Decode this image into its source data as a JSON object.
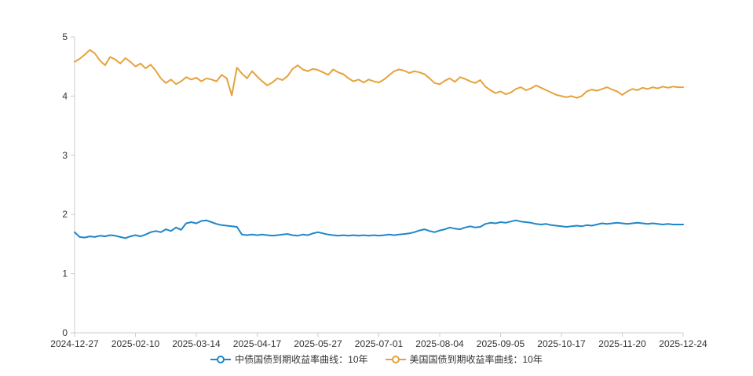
{
  "page": {
    "background": "#ffffff"
  },
  "chart_data": {
    "type": "line",
    "title": "",
    "xlabel": "",
    "ylabel": "",
    "ylim": [
      0,
      5
    ],
    "y_ticks": [
      0,
      1,
      2,
      3,
      4,
      5
    ],
    "grid": false,
    "legend_position": "bottom",
    "axis_color": "#cccccc",
    "label_color": "#333333",
    "x_tick_labels": [
      "2024-12-27",
      "2025-02-10",
      "2025-03-14",
      "2025-04-17",
      "2025-05-27",
      "2025-07-01",
      "2025-08-04",
      "2025-09-05",
      "2025-10-17",
      "2025-11-20",
      "2025-12-24"
    ],
    "series": [
      {
        "name": "中债国债到期收益率曲线：10年",
        "color": "#1e87c9",
        "values": [
          1.7,
          1.62,
          1.61,
          1.63,
          1.62,
          1.64,
          1.63,
          1.65,
          1.64,
          1.62,
          1.6,
          1.63,
          1.65,
          1.63,
          1.66,
          1.7,
          1.72,
          1.7,
          1.75,
          1.72,
          1.78,
          1.74,
          1.85,
          1.87,
          1.85,
          1.89,
          1.9,
          1.87,
          1.84,
          1.82,
          1.81,
          1.8,
          1.79,
          1.66,
          1.65,
          1.66,
          1.65,
          1.66,
          1.65,
          1.64,
          1.65,
          1.66,
          1.67,
          1.65,
          1.64,
          1.66,
          1.65,
          1.68,
          1.7,
          1.68,
          1.66,
          1.65,
          1.64,
          1.65,
          1.64,
          1.65,
          1.64,
          1.65,
          1.64,
          1.65,
          1.64,
          1.65,
          1.66,
          1.65,
          1.66,
          1.67,
          1.68,
          1.7,
          1.73,
          1.75,
          1.72,
          1.7,
          1.73,
          1.75,
          1.78,
          1.76,
          1.75,
          1.78,
          1.8,
          1.78,
          1.79,
          1.84,
          1.86,
          1.85,
          1.87,
          1.86,
          1.88,
          1.9,
          1.88,
          1.87,
          1.86,
          1.84,
          1.83,
          1.84,
          1.82,
          1.81,
          1.8,
          1.79,
          1.8,
          1.81,
          1.8,
          1.82,
          1.81,
          1.83,
          1.85,
          1.84,
          1.85,
          1.86,
          1.85,
          1.84,
          1.85,
          1.86,
          1.85,
          1.84,
          1.85,
          1.84,
          1.83,
          1.84,
          1.83,
          1.83,
          1.83
        ]
      },
      {
        "name": "美国国债到期收益率曲线：10年",
        "color": "#e6a23c",
        "values": [
          4.58,
          4.63,
          4.7,
          4.78,
          4.72,
          4.6,
          4.52,
          4.66,
          4.62,
          4.55,
          4.64,
          4.58,
          4.5,
          4.55,
          4.47,
          4.53,
          4.43,
          4.3,
          4.22,
          4.28,
          4.2,
          4.25,
          4.32,
          4.28,
          4.31,
          4.25,
          4.3,
          4.28,
          4.25,
          4.36,
          4.3,
          4.01,
          4.48,
          4.38,
          4.3,
          4.42,
          4.33,
          4.25,
          4.18,
          4.23,
          4.3,
          4.27,
          4.34,
          4.46,
          4.52,
          4.45,
          4.42,
          4.46,
          4.44,
          4.4,
          4.36,
          4.45,
          4.4,
          4.37,
          4.3,
          4.25,
          4.28,
          4.23,
          4.28,
          4.25,
          4.23,
          4.28,
          4.35,
          4.42,
          4.45,
          4.43,
          4.39,
          4.42,
          4.4,
          4.37,
          4.3,
          4.22,
          4.2,
          4.26,
          4.3,
          4.24,
          4.32,
          4.29,
          4.25,
          4.22,
          4.27,
          4.16,
          4.1,
          4.05,
          4.08,
          4.03,
          4.06,
          4.12,
          4.15,
          4.1,
          4.13,
          4.18,
          4.14,
          4.1,
          4.06,
          4.02,
          4.0,
          3.98,
          4.0,
          3.97,
          4.0,
          4.08,
          4.11,
          4.09,
          4.12,
          4.15,
          4.11,
          4.08,
          4.02,
          4.08,
          4.12,
          4.1,
          4.14,
          4.12,
          4.15,
          4.13,
          4.16,
          4.14,
          4.16,
          4.15,
          4.15
        ]
      }
    ]
  }
}
